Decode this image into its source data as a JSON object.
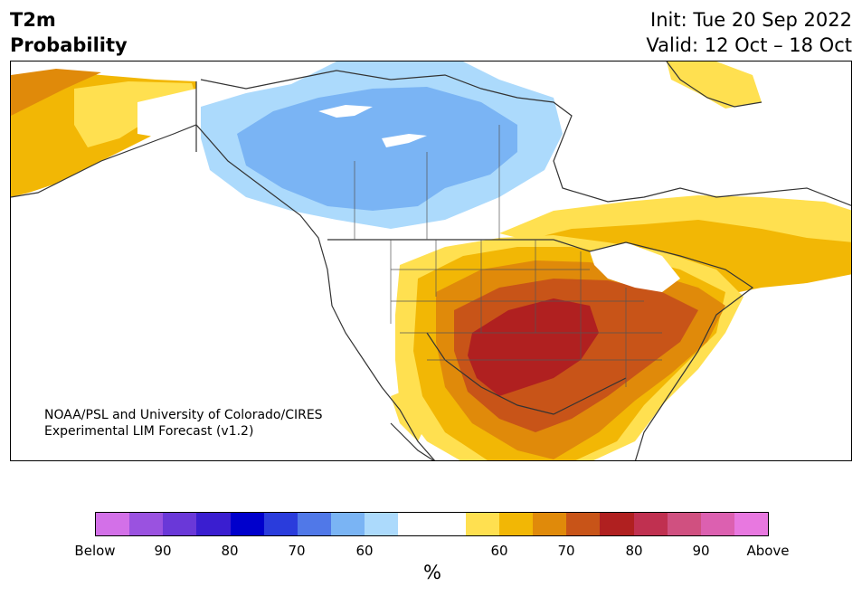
{
  "header": {
    "title_line1": "T2m",
    "title_line2": "Probability",
    "init_text": "Init: Tue 20 Sep 2022",
    "valid_text": "Valid: 12 Oct – 18 Oct"
  },
  "credit": {
    "line1": "NOAA/PSL and University of Colorado/CIRES",
    "line2": "Experimental LIM Forecast (v1.2)"
  },
  "colorbar": {
    "colors": [
      "#d370e8",
      "#9a52e0",
      "#6a38d8",
      "#3a1ed0",
      "#0000cc",
      "#2a3cdc",
      "#5078e8",
      "#7ab4f4",
      "#acdafc",
      "#ffffff",
      "#ffffff",
      "#ffe050",
      "#f2b705",
      "#e08a0a",
      "#c85418",
      "#b02020",
      "#c03050",
      "#d05080",
      "#dc60b0",
      "#e878e0"
    ],
    "ticks": [
      "Below",
      "90",
      "80",
      "70",
      "60",
      "60",
      "70",
      "80",
      "90",
      "Above"
    ],
    "unit": "%"
  },
  "map": {
    "palette": {
      "blue_light": "#acdafc",
      "blue_mid": "#7ab4f4",
      "yellow": "#ffe050",
      "gold": "#f2b705",
      "orange": "#e08a0a",
      "rust": "#c85418",
      "red": "#b02020"
    }
  }
}
